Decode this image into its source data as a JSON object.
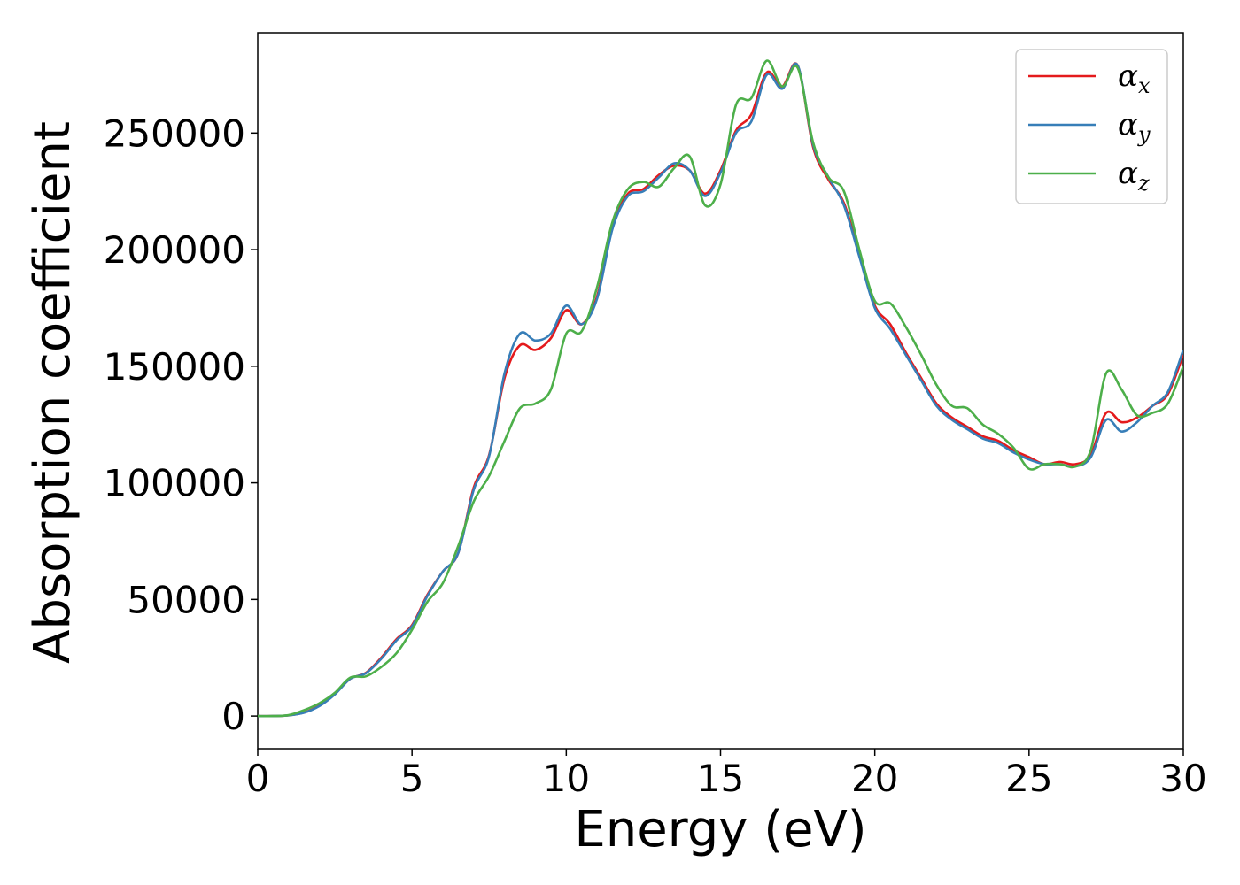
{
  "chart_data": {
    "type": "line",
    "xlabel": "Energy (eV)",
    "ylabel": "Absorption coefficient",
    "xlim": [
      0,
      30
    ],
    "ylim": [
      -14000,
      293000
    ],
    "xticks": [
      0,
      5,
      10,
      15,
      20,
      25,
      30
    ],
    "yticks": [
      0,
      50000,
      100000,
      150000,
      200000,
      250000
    ],
    "legend_position": "top-right",
    "grid": false,
    "x": [
      0,
      0.5,
      1,
      1.5,
      2,
      2.5,
      3,
      3.5,
      4,
      4.5,
      5,
      5.5,
      6,
      6.5,
      7,
      7.5,
      8,
      8.5,
      9,
      9.5,
      10,
      10.5,
      11,
      11.5,
      12,
      12.5,
      13,
      13.5,
      14,
      14.5,
      15,
      15.5,
      16,
      16.5,
      17,
      17.5,
      18,
      18.5,
      19,
      19.5,
      20,
      20.5,
      21,
      21.5,
      22,
      22.5,
      23,
      23.5,
      24,
      24.5,
      25,
      25.5,
      26,
      26.5,
      27,
      27.5,
      28,
      28.5,
      29,
      29.5,
      30
    ],
    "series": [
      {
        "name": "α",
        "subscript": "x",
        "color": "#e41a1c",
        "values": [
          0,
          0,
          300,
          1500,
          4500,
          9500,
          16000,
          18500,
          25000,
          33000,
          39000,
          52000,
          62000,
          70000,
          98000,
          112000,
          145000,
          159000,
          157000,
          162000,
          174000,
          168000,
          180000,
          210000,
          224000,
          226000,
          232000,
          236000,
          234000,
          224000,
          234000,
          251000,
          258000,
          276000,
          270000,
          279000,
          244000,
          230000,
          220000,
          198000,
          176000,
          168000,
          156000,
          145000,
          134000,
          128000,
          124000,
          120000,
          118000,
          114000,
          111000,
          108000,
          109000,
          108000,
          112000,
          130000,
          126000,
          128000,
          133000,
          138000,
          155000
        ]
      },
      {
        "name": "α",
        "subscript": "y",
        "color": "#377eb8",
        "values": [
          0,
          0,
          300,
          1400,
          4300,
          9300,
          16000,
          18300,
          24500,
          32500,
          38500,
          51500,
          62000,
          70000,
          97000,
          111500,
          147000,
          164000,
          161000,
          164000,
          176000,
          168000,
          179000,
          209000,
          223000,
          225000,
          231000,
          237000,
          234000,
          223000,
          233000,
          250000,
          255000,
          275000,
          269000,
          279000,
          245000,
          231000,
          219000,
          197000,
          175000,
          166000,
          155000,
          144000,
          133000,
          127000,
          123000,
          119000,
          117000,
          113000,
          110000,
          108000,
          108000,
          107000,
          111000,
          127000,
          122000,
          126000,
          133000,
          139000,
          157000
        ]
      },
      {
        "name": "α",
        "subscript": "z",
        "color": "#4daf4a",
        "values": [
          0,
          0,
          400,
          2500,
          5500,
          10000,
          16500,
          17000,
          21000,
          27000,
          37000,
          49000,
          57000,
          73000,
          92000,
          103000,
          118000,
          132000,
          134000,
          140000,
          164000,
          165000,
          184000,
          212000,
          226000,
          229000,
          227000,
          235000,
          240000,
          219000,
          228000,
          262000,
          265000,
          281000,
          270000,
          278000,
          246000,
          231000,
          225000,
          200000,
          178000,
          177000,
          167000,
          155000,
          142000,
          133000,
          132000,
          125000,
          121000,
          115000,
          106000,
          108000,
          108000,
          107000,
          114000,
          147000,
          140000,
          129000,
          130000,
          134000,
          150000
        ]
      }
    ]
  }
}
